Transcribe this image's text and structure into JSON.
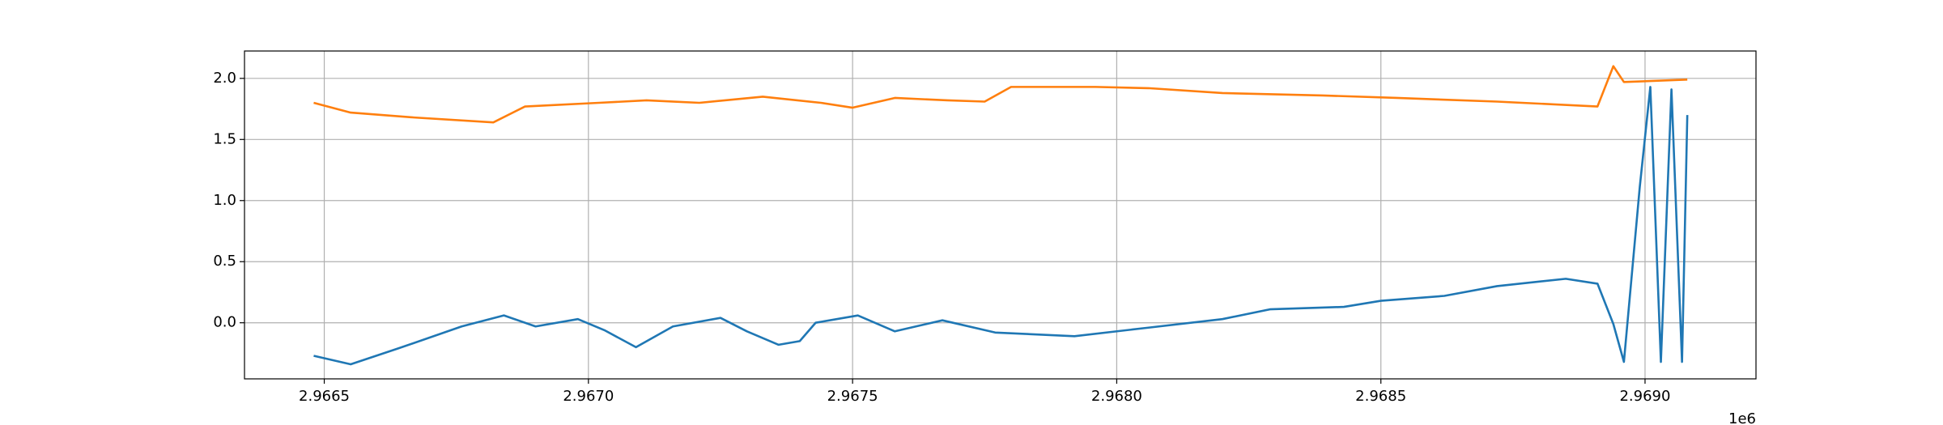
{
  "chart_data": {
    "type": "line",
    "x_offset_label": "1e6",
    "xlim": [
      2.966349,
      2.96921
    ],
    "xticks": [
      2.9665,
      {
        "value": 2.967,
        "label": "2.9670"
      },
      2.9675,
      {
        "value": 2.968,
        "label": "2.9680"
      },
      2.9685,
      {
        "value": 2.969,
        "label": "2.9690"
      }
    ],
    "ylim": [
      -0.459,
      2.224
    ],
    "yticks": [
      {
        "value": 0,
        "label": "0.0"
      },
      0.5,
      {
        "value": 1,
        "label": "1.0"
      },
      1.5,
      {
        "value": 2,
        "label": "2.0"
      }
    ],
    "grid": true,
    "series": [
      {
        "color": "#1f77b4",
        "x": [
          2.96648,
          2.96655,
          2.96664,
          2.96676,
          2.96684,
          2.9669,
          2.96698,
          2.96703,
          2.96709,
          2.96716,
          2.96725,
          2.9673,
          2.96736,
          2.9674,
          2.96743,
          2.96751,
          2.96758,
          2.96767,
          2.96777,
          2.96792,
          2.96806,
          2.9682,
          2.96829,
          2.96843,
          2.9685,
          2.96862,
          2.96872,
          2.96885,
          2.96891,
          2.96894,
          2.96896,
          2.96899,
          2.96901,
          2.96903,
          2.96905,
          2.96907,
          2.96908
        ],
        "values": [
          -0.27,
          -0.34,
          -0.21,
          -0.03,
          0.06,
          -0.03,
          0.03,
          -0.06,
          -0.2,
          -0.03,
          0.04,
          -0.07,
          -0.18,
          -0.15,
          0.0,
          0.06,
          -0.07,
          0.02,
          -0.08,
          -0.11,
          -0.04,
          0.03,
          0.11,
          0.13,
          0.18,
          0.22,
          0.3,
          0.36,
          0.32,
          -0.01,
          -0.32,
          1.11,
          1.93,
          -0.32,
          1.91,
          -0.32,
          1.7
        ]
      },
      {
        "color": "#ff7f0e",
        "x": [
          2.96648,
          2.96655,
          2.96667,
          2.96682,
          2.96688,
          2.96702,
          2.96711,
          2.96721,
          2.96733,
          2.96744,
          2.9675,
          2.96758,
          2.96768,
          2.96775,
          2.9678,
          2.96796,
          2.96806,
          2.9682,
          2.96839,
          2.96853,
          2.96872,
          2.96891,
          2.96894,
          2.96896,
          2.96908
        ],
        "values": [
          1.8,
          1.72,
          1.68,
          1.64,
          1.77,
          1.8,
          1.82,
          1.8,
          1.85,
          1.8,
          1.76,
          1.84,
          1.82,
          1.81,
          1.93,
          1.93,
          1.92,
          1.88,
          1.86,
          1.84,
          1.81,
          1.77,
          2.1,
          1.97,
          1.99
        ]
      }
    ]
  }
}
